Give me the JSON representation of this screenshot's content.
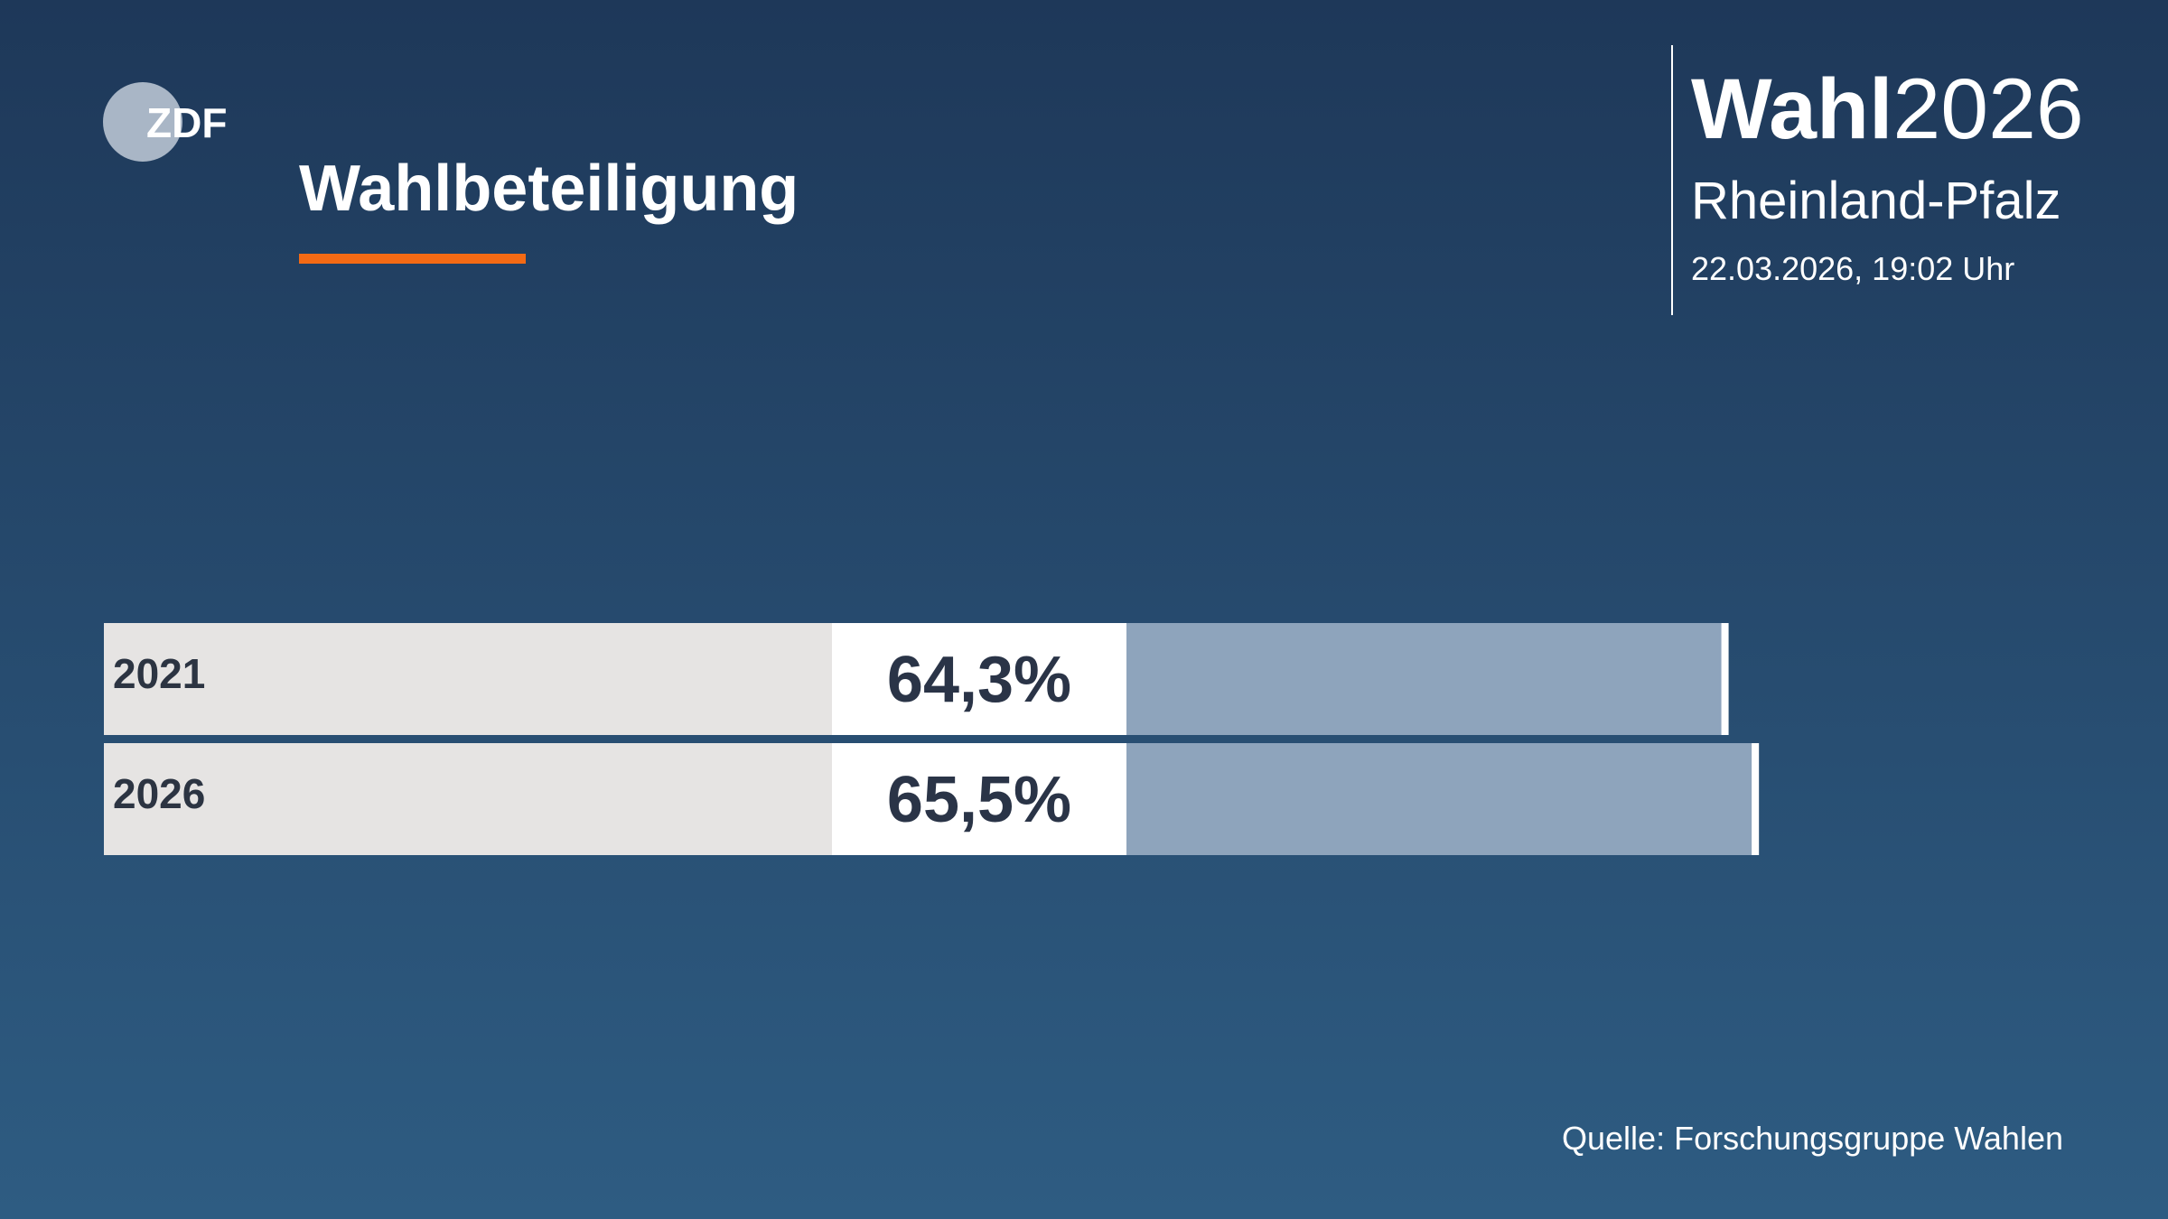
{
  "logo": "ZDF",
  "brand": {
    "bold": "Wahl",
    "regular": "2026"
  },
  "region": "Rheinland-Pfalz",
  "timestamp": "22.03.2026, 19:02 Uhr",
  "source": "Quelle: Forschungsgruppe Wahlen",
  "chart_data": {
    "type": "bar",
    "orientation": "horizontal",
    "title": "Wahlbeteiligung",
    "categories": [
      "2021",
      "2026"
    ],
    "values": [
      64.3,
      65.5
    ],
    "value_labels": [
      "64,3%",
      "65,5%"
    ],
    "color": "#8ea4bc",
    "xlim": [
      0,
      70
    ]
  }
}
